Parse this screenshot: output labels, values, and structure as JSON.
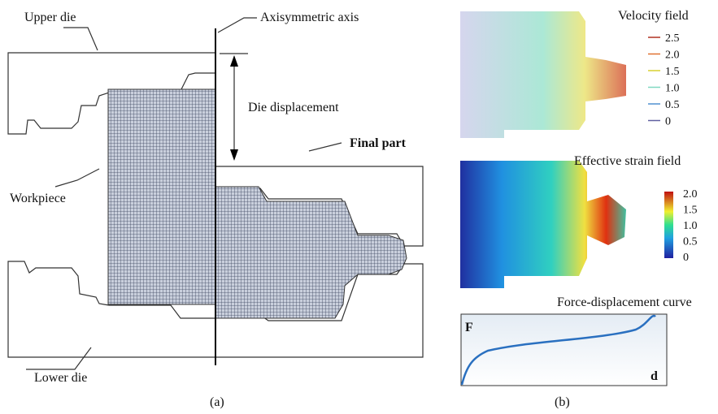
{
  "panel_a": {
    "labels": {
      "upper_die": "Upper die",
      "axis": "Axisymmetric axis",
      "die_displacement": "Die displacement",
      "final_part": "Final part",
      "workpiece": "Workpiece",
      "lower_die": "Lower die"
    },
    "caption": "(a)"
  },
  "panel_b": {
    "velocity": {
      "title": "Velocity field",
      "legend": [
        "2.5",
        "2.0",
        "1.5",
        "1.0",
        "0.5",
        "0"
      ]
    },
    "strain": {
      "title": "Effective strain field",
      "colorbar": [
        "2.0",
        "1.5",
        "1.0",
        "0.5",
        "0"
      ]
    },
    "force": {
      "title": "Force-displacement curve",
      "y_label": "F",
      "x_label": "d"
    },
    "caption": "(b)"
  }
}
